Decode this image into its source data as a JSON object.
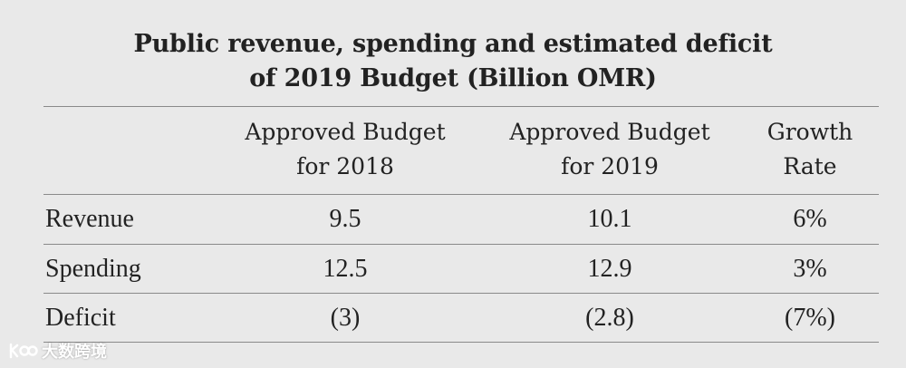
{
  "title": {
    "line1": "Public revenue, spending and estimated deficit",
    "line2": "of 2019 Budget (Billion OMR)"
  },
  "table": {
    "columns": [
      {
        "line1": "Approved Budget",
        "line2": "for 2018"
      },
      {
        "line1": "Approved Budget",
        "line2": "for 2019"
      },
      {
        "line1": "Growth",
        "line2": "Rate"
      }
    ],
    "rows": [
      {
        "label": "Revenue",
        "values": [
          "9.5",
          "10.1",
          "6%"
        ]
      },
      {
        "label": "Spending",
        "values": [
          "12.5",
          "12.9",
          "3%"
        ]
      },
      {
        "label": "Deficit",
        "values": [
          "(3)",
          "(2.8)",
          "(7%)"
        ]
      }
    ]
  },
  "watermark": {
    "text": "大数跨境"
  }
}
